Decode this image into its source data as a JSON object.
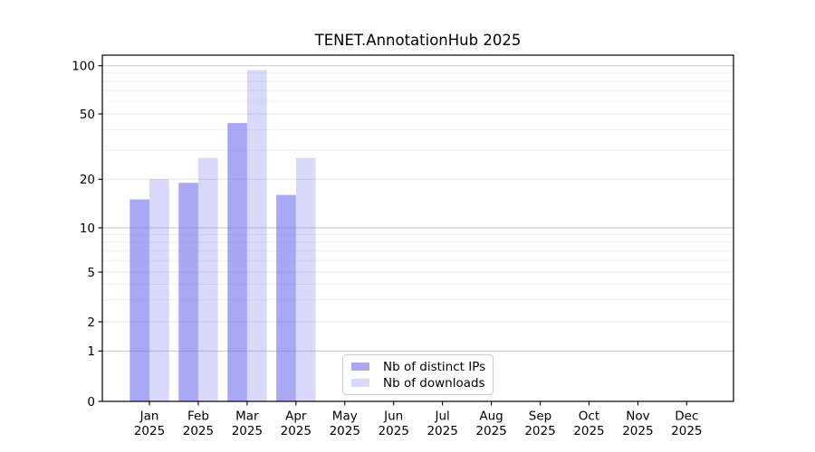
{
  "figure": {
    "background": "#ffffff"
  },
  "chart_data": {
    "type": "bar",
    "title": "TENET.AnnotationHub 2025",
    "xlabel": "",
    "ylabel": "",
    "scale": "pseudo-log",
    "ylim": [
      0,
      110
    ],
    "grid": "horizontal major and minor log gridlines",
    "legend_position": "lower center",
    "categories": [
      "Jan",
      "Feb",
      "Mar",
      "Apr",
      "May",
      "Jun",
      "Jul",
      "Aug",
      "Sep",
      "Oct",
      "Nov",
      "Dec"
    ],
    "category_year": "2025",
    "y_ticks": [
      0,
      1,
      2,
      5,
      10,
      20,
      50,
      100
    ],
    "series": [
      {
        "name": "Nb of distinct IPs",
        "fill": "rgba(102,102,238,0.57)",
        "rendered_hex": "#a8a8f8",
        "values": [
          15,
          19,
          44,
          16,
          null,
          null,
          null,
          null,
          null,
          null,
          null,
          null
        ]
      },
      {
        "name": "Nb of downloads",
        "fill": "rgba(102,102,238,0.25)",
        "rendered_hex": "#d9d9f8",
        "values": [
          20,
          27,
          94,
          27,
          null,
          null,
          null,
          null,
          null,
          null,
          null,
          null
        ]
      }
    ]
  },
  "colors": {
    "major_grid": "#c7c7c7",
    "labeled_minor_grid": "#e3e3e3",
    "minor_grid": "#f0f0f0",
    "axis": "#000000",
    "text": "#000000",
    "legend_border": "#cccccc"
  }
}
